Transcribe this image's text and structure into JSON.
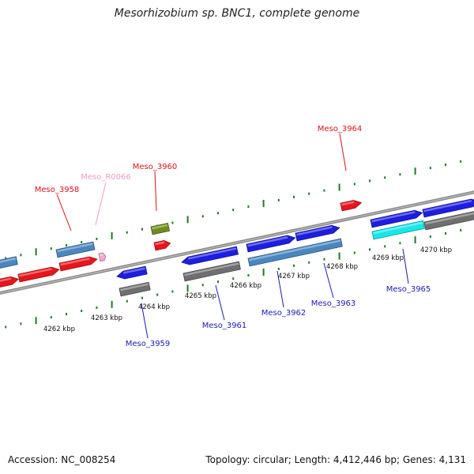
{
  "header": {
    "title": "Mesorhizobium sp. BNC1, complete genome"
  },
  "footer": {
    "accession": "Accession: NC_008254",
    "summary": "Topology: circular; Length: 4,412,446 bp; Genes: 4,131"
  },
  "colors": {
    "background": "#ffffff",
    "backbone": "#8a8a8a",
    "tick": "#1e7a1e",
    "red_gene": "#e8151b",
    "blue_gene": "#1e1ee0",
    "steel_gene": "#4a86c0",
    "gray_gene": "#6f6f6f",
    "olive_gene": "#6f8c1f",
    "cyan_gene": "#16e8e8",
    "pink_gene": "#f5a8d6",
    "label_red": "#d8141a",
    "label_blue": "#1a1ab4",
    "label_pink": "#f19ac8"
  },
  "scale_labels": [
    "4262 kbp",
    "4263 kbp",
    "4264 kbp",
    "4265 kbp",
    "4266 kbp",
    "4267 kbp",
    "4268 kbp",
    "4269 kbp",
    "4270 kbp"
  ],
  "gene_labels": [
    {
      "text": "Meso_3958",
      "color": "label_red"
    },
    {
      "text": "Meso_R0066",
      "color": "label_pink"
    },
    {
      "text": "Meso_3960",
      "color": "label_red"
    },
    {
      "text": "Meso_3964",
      "color": "label_red"
    },
    {
      "text": "Meso_3959",
      "color": "label_blue"
    },
    {
      "text": "Meso_3961",
      "color": "label_blue"
    },
    {
      "text": "Meso_3962",
      "color": "label_blue"
    },
    {
      "text": "Meso_3963",
      "color": "label_blue"
    },
    {
      "text": "Meso_3965",
      "color": "label_blue"
    }
  ]
}
